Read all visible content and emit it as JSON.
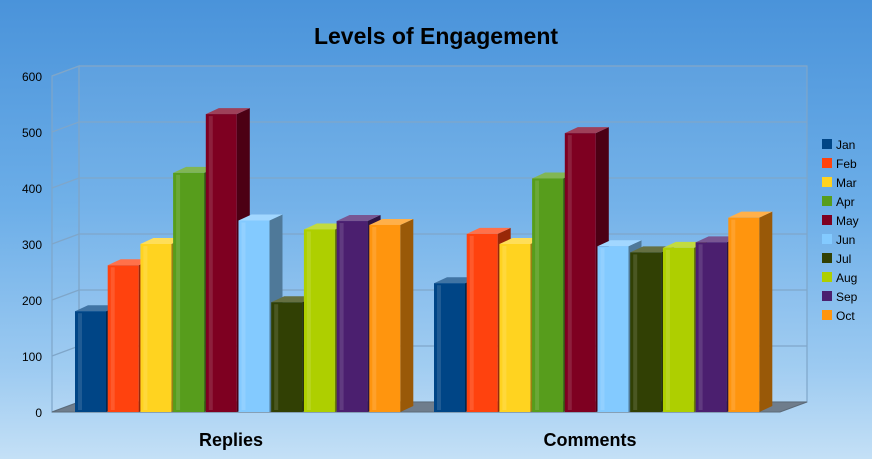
{
  "chart_data": {
    "type": "bar",
    "title": "Levels of Engagement",
    "categories": [
      "Replies",
      "Comments"
    ],
    "ylim": [
      0,
      600
    ],
    "yticks": [
      0,
      100,
      200,
      300,
      400,
      500,
      600
    ],
    "grid": true,
    "legend_position": "right",
    "series": [
      {
        "name": "Jan",
        "color": "#004586",
        "values": [
          180,
          230
        ]
      },
      {
        "name": "Feb",
        "color": "#ff420e",
        "values": [
          262,
          318
        ]
      },
      {
        "name": "Mar",
        "color": "#ffd320",
        "values": [
          300,
          300
        ]
      },
      {
        "name": "Apr",
        "color": "#579d1c",
        "values": [
          427,
          417
        ]
      },
      {
        "name": "May",
        "color": "#7e0021",
        "values": [
          532,
          498
        ]
      },
      {
        "name": "Jun",
        "color": "#83caff",
        "values": [
          342,
          296
        ]
      },
      {
        "name": "Jul",
        "color": "#314004",
        "values": [
          196,
          285
        ]
      },
      {
        "name": "Aug",
        "color": "#aecf00",
        "values": [
          326,
          293
        ]
      },
      {
        "name": "Sep",
        "color": "#4b1f6f",
        "values": [
          341,
          303
        ]
      },
      {
        "name": "Oct",
        "color": "#ff950e",
        "values": [
          334,
          347
        ]
      }
    ]
  }
}
